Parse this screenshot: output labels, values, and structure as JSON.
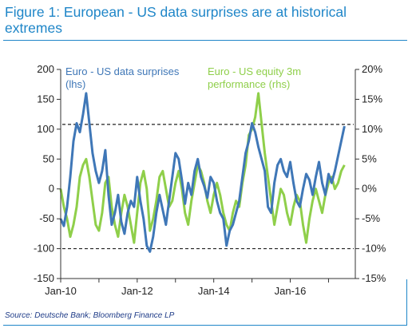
{
  "title": "Figure 1: European - US data surprises are at historical extremes",
  "source": "Source: Deutsche Bank; Bloomberg Finance LP",
  "colors": {
    "title": "#1f86c8",
    "surprises": "#3f77b7",
    "equity": "#8fcf4a",
    "reference": "#222222"
  },
  "chart_data": {
    "type": "line",
    "title": "Figure 1: European - US data surprises are at historical extremes",
    "x_ticks": [
      "Jan-10",
      "Jan-12",
      "Jan-14",
      "Jan-16"
    ],
    "y_left": {
      "ticks": [
        "200",
        "150",
        "100",
        "50",
        "0",
        "-50",
        "-100",
        "-150"
      ],
      "ylim": [
        -150,
        200
      ]
    },
    "y_right": {
      "ticks": [
        "20%",
        "15%",
        "10%",
        "5%",
        "0%",
        "-5%",
        "-10%",
        "-15%"
      ],
      "ylim": [
        -15,
        20
      ]
    },
    "legend": {
      "surprises_line1": "Euro - US data surprises",
      "surprises_line2": "(lhs)",
      "equity_line1": "Euro - US equity 3m",
      "equity_line2": "performance (rhs)"
    },
    "reference_lines": [
      {
        "axis": "left",
        "value": 108
      },
      {
        "axis": "left",
        "value": -100
      }
    ],
    "series": [
      {
        "name": "Euro - US data surprises (lhs)",
        "axis": "left",
        "points": [
          [
            "2010-01",
            -50
          ],
          [
            "2010-02",
            -62
          ],
          [
            "2010-03",
            -30
          ],
          [
            "2010-04",
            20
          ],
          [
            "2010-05",
            80
          ],
          [
            "2010-06",
            110
          ],
          [
            "2010-07",
            95
          ],
          [
            "2010-08",
            125
          ],
          [
            "2010-09",
            160
          ],
          [
            "2010-10",
            110
          ],
          [
            "2010-11",
            60
          ],
          [
            "2010-12",
            30
          ],
          [
            "2011-01",
            10
          ],
          [
            "2011-02",
            30
          ],
          [
            "2011-03",
            65
          ],
          [
            "2011-04",
            -10
          ],
          [
            "2011-05",
            -60
          ],
          [
            "2011-06",
            -40
          ],
          [
            "2011-07",
            -10
          ],
          [
            "2011-08",
            -55
          ],
          [
            "2011-09",
            -75
          ],
          [
            "2011-10",
            -40
          ],
          [
            "2011-11",
            -20
          ],
          [
            "2011-12",
            -30
          ],
          [
            "2012-01",
            20
          ],
          [
            "2012-02",
            -20
          ],
          [
            "2012-03",
            -50
          ],
          [
            "2012-04",
            -95
          ],
          [
            "2012-05",
            -105
          ],
          [
            "2012-06",
            -80
          ],
          [
            "2012-07",
            -40
          ],
          [
            "2012-08",
            -10
          ],
          [
            "2012-09",
            -35
          ],
          [
            "2012-10",
            -60
          ],
          [
            "2012-11",
            -20
          ],
          [
            "2012-12",
            20
          ],
          [
            "2013-01",
            60
          ],
          [
            "2013-02",
            50
          ],
          [
            "2013-03",
            15
          ],
          [
            "2013-04",
            -25
          ],
          [
            "2013-05",
            10
          ],
          [
            "2013-06",
            -10
          ],
          [
            "2013-07",
            30
          ],
          [
            "2013-08",
            50
          ],
          [
            "2013-09",
            20
          ],
          [
            "2013-10",
            5
          ],
          [
            "2013-11",
            -15
          ],
          [
            "2013-12",
            20
          ],
          [
            "2014-01",
            10
          ],
          [
            "2014-02",
            -20
          ],
          [
            "2014-03",
            -40
          ],
          [
            "2014-04",
            -50
          ],
          [
            "2014-05",
            -95
          ],
          [
            "2014-06",
            -70
          ],
          [
            "2014-07",
            -60
          ],
          [
            "2014-08",
            -40
          ],
          [
            "2014-09",
            -20
          ],
          [
            "2014-10",
            20
          ],
          [
            "2014-11",
            60
          ],
          [
            "2014-12",
            80
          ],
          [
            "2015-01",
            110
          ],
          [
            "2015-02",
            95
          ],
          [
            "2015-03",
            70
          ],
          [
            "2015-04",
            50
          ],
          [
            "2015-05",
            30
          ],
          [
            "2015-06",
            -30
          ],
          [
            "2015-07",
            -40
          ],
          [
            "2015-08",
            10
          ],
          [
            "2015-09",
            40
          ],
          [
            "2015-10",
            50
          ],
          [
            "2015-11",
            30
          ],
          [
            "2015-12",
            20
          ],
          [
            "2016-01",
            45
          ],
          [
            "2016-02",
            10
          ],
          [
            "2016-03",
            -20
          ],
          [
            "2016-04",
            -30
          ],
          [
            "2016-05",
            0
          ],
          [
            "2016-06",
            25
          ],
          [
            "2016-07",
            15
          ],
          [
            "2016-08",
            -10
          ],
          [
            "2016-09",
            20
          ],
          [
            "2016-10",
            45
          ],
          [
            "2016-11",
            10
          ],
          [
            "2016-12",
            -10
          ],
          [
            "2017-01",
            25
          ],
          [
            "2017-02",
            10
          ],
          [
            "2017-03",
            30
          ],
          [
            "2017-04",
            55
          ],
          [
            "2017-05",
            80
          ],
          [
            "2017-06",
            105
          ]
        ]
      },
      {
        "name": "Euro - US equity 3m performance (rhs)",
        "axis": "right",
        "points": [
          [
            "2010-01",
            0
          ],
          [
            "2010-02",
            -3
          ],
          [
            "2010-03",
            -5
          ],
          [
            "2010-04",
            -8
          ],
          [
            "2010-05",
            -6
          ],
          [
            "2010-06",
            -3
          ],
          [
            "2010-07",
            2
          ],
          [
            "2010-08",
            4
          ],
          [
            "2010-09",
            5
          ],
          [
            "2010-10",
            2
          ],
          [
            "2010-11",
            -2
          ],
          [
            "2010-12",
            -6
          ],
          [
            "2011-01",
            -7
          ],
          [
            "2011-02",
            -4
          ],
          [
            "2011-03",
            1
          ],
          [
            "2011-04",
            2
          ],
          [
            "2011-05",
            -3
          ],
          [
            "2011-06",
            -6
          ],
          [
            "2011-07",
            -8
          ],
          [
            "2011-08",
            -4
          ],
          [
            "2011-09",
            -1
          ],
          [
            "2011-10",
            -3
          ],
          [
            "2011-11",
            -6
          ],
          [
            "2011-12",
            -9
          ],
          [
            "2012-01",
            -4
          ],
          [
            "2012-02",
            1
          ],
          [
            "2012-03",
            3
          ],
          [
            "2012-04",
            0
          ],
          [
            "2012-05",
            -7
          ],
          [
            "2012-06",
            -5
          ],
          [
            "2012-07",
            -2
          ],
          [
            "2012-08",
            2
          ],
          [
            "2012-09",
            3
          ],
          [
            "2012-10",
            0
          ],
          [
            "2012-11",
            -3
          ],
          [
            "2012-12",
            -2
          ],
          [
            "2013-01",
            1
          ],
          [
            "2013-02",
            3
          ],
          [
            "2013-03",
            0
          ],
          [
            "2013-04",
            -4
          ],
          [
            "2013-05",
            -6
          ],
          [
            "2013-06",
            -2
          ],
          [
            "2013-07",
            1
          ],
          [
            "2013-08",
            4
          ],
          [
            "2013-09",
            3
          ],
          [
            "2013-10",
            1
          ],
          [
            "2013-11",
            -2
          ],
          [
            "2013-12",
            -4
          ],
          [
            "2014-01",
            -1
          ],
          [
            "2014-02",
            1
          ],
          [
            "2014-03",
            -1
          ],
          [
            "2014-04",
            -4
          ],
          [
            "2014-05",
            -6
          ],
          [
            "2014-06",
            -7
          ],
          [
            "2014-07",
            -4
          ],
          [
            "2014-08",
            -2
          ],
          [
            "2014-09",
            -3
          ],
          [
            "2014-10",
            1
          ],
          [
            "2014-11",
            4
          ],
          [
            "2014-12",
            9
          ],
          [
            "2015-01",
            10
          ],
          [
            "2015-02",
            12
          ],
          [
            "2015-03",
            16
          ],
          [
            "2015-04",
            11
          ],
          [
            "2015-05",
            6
          ],
          [
            "2015-06",
            2
          ],
          [
            "2015-07",
            -2
          ],
          [
            "2015-08",
            -6
          ],
          [
            "2015-09",
            -3
          ],
          [
            "2015-10",
            0
          ],
          [
            "2015-11",
            -1
          ],
          [
            "2015-12",
            -4
          ],
          [
            "2016-01",
            -6
          ],
          [
            "2016-02",
            -3
          ],
          [
            "2016-03",
            -1
          ],
          [
            "2016-04",
            -2
          ],
          [
            "2016-05",
            -6
          ],
          [
            "2016-06",
            -9
          ],
          [
            "2016-07",
            -5
          ],
          [
            "2016-08",
            -2
          ],
          [
            "2016-09",
            0
          ],
          [
            "2016-10",
            -2
          ],
          [
            "2016-11",
            -4
          ],
          [
            "2016-12",
            -1
          ],
          [
            "2017-01",
            1
          ],
          [
            "2017-02",
            2
          ],
          [
            "2017-03",
            0
          ],
          [
            "2017-04",
            1
          ],
          [
            "2017-05",
            3
          ],
          [
            "2017-06",
            4
          ]
        ]
      }
    ]
  }
}
